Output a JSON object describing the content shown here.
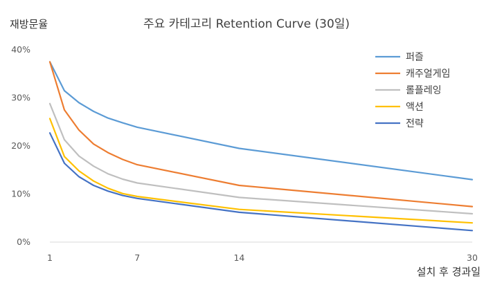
{
  "chart_data": {
    "type": "line",
    "title": "주요 카테고리 Retention Curve (30일)",
    "ylabel": "재방문율",
    "xlabel": "설치 후 경과일",
    "x": [
      1,
      2,
      3,
      4,
      5,
      6,
      7,
      14,
      30
    ],
    "xticks": [
      "1",
      "7",
      "14",
      "30"
    ],
    "xlim": [
      1,
      30
    ],
    "ylim": [
      0,
      40
    ],
    "yticks": [
      "0%",
      "10%",
      "20%",
      "30%",
      "40%"
    ],
    "grid": false,
    "legend": "top-right",
    "series": [
      {
        "name": "퍼즐",
        "color": "#5B9BD5",
        "values": [
          37.5,
          31.5,
          29.0,
          27.2,
          25.8,
          24.8,
          23.9,
          19.5,
          13.0
        ]
      },
      {
        "name": "캐주얼게임",
        "color": "#ED7D31",
        "values": [
          37.5,
          27.5,
          23.3,
          20.4,
          18.6,
          17.2,
          16.1,
          11.8,
          7.4
        ]
      },
      {
        "name": "롤플레잉",
        "color": "#BFBFBF",
        "values": [
          28.8,
          21.3,
          17.9,
          15.8,
          14.2,
          13.1,
          12.3,
          9.3,
          5.9
        ]
      },
      {
        "name": "액션",
        "color": "#FFC000",
        "values": [
          25.7,
          17.8,
          14.8,
          12.7,
          11.2,
          10.1,
          9.5,
          6.8,
          4.0
        ]
      },
      {
        "name": "전략",
        "color": "#4472C4",
        "values": [
          22.7,
          16.4,
          13.6,
          11.8,
          10.6,
          9.7,
          9.1,
          6.2,
          2.4
        ]
      }
    ]
  }
}
